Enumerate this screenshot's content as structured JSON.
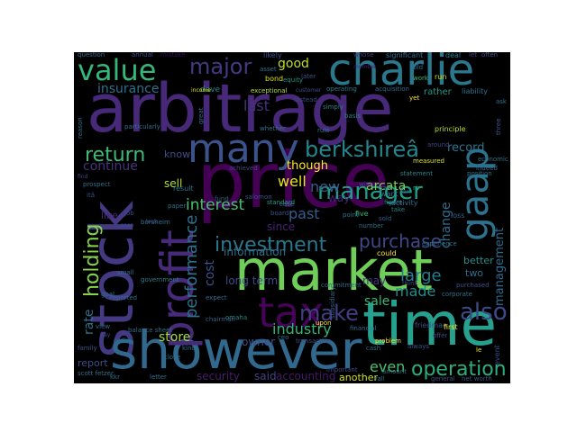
{
  "words": [
    {
      "t": "arbitrage",
      "c": "#482878"
    },
    {
      "t": "price",
      "c": "#440154"
    },
    {
      "t": "stock",
      "c": "#443a83"
    },
    {
      "t": "market",
      "c": "#6ece58"
    },
    {
      "t": "time",
      "c": "#25a18e"
    },
    {
      "t": "showever",
      "c": "#31688e"
    },
    {
      "t": "charlie",
      "c": "#2a788e"
    },
    {
      "t": "profit",
      "c": "#472a7a"
    },
    {
      "t": "value",
      "c": "#35b779"
    },
    {
      "t": "many",
      "c": "#3b528b"
    },
    {
      "t": "gaap",
      "c": "#2c728e"
    },
    {
      "t": "tax",
      "c": "#450457"
    },
    {
      "t": "also",
      "c": "#3e4989"
    },
    {
      "t": "investment",
      "c": "#2a788e"
    },
    {
      "t": "berkshireâ",
      "c": "#24868e"
    },
    {
      "t": "manager",
      "c": "#1f9e89"
    },
    {
      "t": "major",
      "c": "#443983"
    },
    {
      "t": "return",
      "c": "#3bbb75"
    },
    {
      "t": "operation",
      "c": "#2ab07f"
    },
    {
      "t": "holding",
      "c": "#84d44b"
    },
    {
      "t": "performance",
      "c": "#2d708e"
    },
    {
      "t": "purchase",
      "c": "#3f4889"
    },
    {
      "t": "make",
      "c": "#433e85"
    },
    {
      "t": "good",
      "c": "#bddf26"
    },
    {
      "t": "sale",
      "c": "#37b878"
    },
    {
      "t": "last",
      "c": "#46327e"
    },
    {
      "t": "well",
      "c": "#e5e419"
    },
    {
      "t": "new",
      "c": "#365c8d"
    },
    {
      "t": "interest",
      "c": "#46c06f"
    },
    {
      "t": "industry",
      "c": "#31b57b"
    },
    {
      "t": "store",
      "c": "#a2da37"
    },
    {
      "t": "insurance",
      "c": "#2d708e"
    },
    {
      "t": "continue",
      "c": "#46337e"
    },
    {
      "t": "cost",
      "c": "#3b528b"
    },
    {
      "t": "even",
      "c": "#4ac16d"
    },
    {
      "t": "large",
      "c": "#287d8e"
    },
    {
      "t": "though",
      "c": "#fde725"
    },
    {
      "t": "made",
      "c": "#228c8d"
    },
    {
      "t": "management",
      "c": "#306a8e"
    },
    {
      "t": "change",
      "c": "#2f6c8e"
    },
    {
      "t": "past",
      "c": "#365d8d"
    },
    {
      "t": "rate",
      "c": "#2c738e"
    },
    {
      "t": "arcata",
      "c": "#7ad151"
    },
    {
      "t": "record",
      "c": "#2a778e"
    },
    {
      "t": "long term",
      "c": "#3e4a89"
    },
    {
      "t": "information",
      "c": "#2c728e"
    },
    {
      "t": "sell",
      "c": "#b2dd2d"
    },
    {
      "t": "since",
      "c": "#482173"
    },
    {
      "t": "way",
      "c": "#482475"
    },
    {
      "t": "know",
      "c": "#3d4e8a"
    },
    {
      "t": "like",
      "c": "#482677"
    },
    {
      "t": "security",
      "c": "#481c6e"
    },
    {
      "t": "owner",
      "c": "#3c4f8a"
    },
    {
      "t": "said",
      "c": "#414487"
    },
    {
      "t": "accounting",
      "c": "#48186a"
    },
    {
      "t": "another",
      "c": "#d0e11c"
    },
    {
      "t": "report",
      "c": "#3e4c8a"
    },
    {
      "t": "may",
      "c": "#463480"
    },
    {
      "t": "two",
      "c": "#2e6e8e"
    },
    {
      "t": "better",
      "c": "#20928c"
    },
    {
      "t": "question",
      "c": "#2e6f8e"
    },
    {
      "t": "annual",
      "c": "#3a548c"
    },
    {
      "t": "mistake",
      "c": "#2d1159"
    },
    {
      "t": "likely",
      "c": "#3b518b"
    },
    {
      "t": "whose",
      "c": "#453581"
    },
    {
      "t": "significant",
      "c": "#2d708e"
    },
    {
      "t": "deal",
      "c": "#26818e"
    },
    {
      "t": "let",
      "c": "#433d84"
    },
    {
      "t": "often",
      "c": "#3a548c"
    },
    {
      "t": "bond",
      "c": "#dde318"
    },
    {
      "t": "equity",
      "c": "#1f988b"
    },
    {
      "t": "later",
      "c": "#3b528b"
    },
    {
      "t": "member",
      "c": "#481d6f"
    },
    {
      "t": "hold",
      "c": "#2c718e"
    },
    {
      "t": "run",
      "c": "#c8e020"
    },
    {
      "t": "work",
      "c": "#38b977"
    },
    {
      "t": "dave",
      "c": "#23898e"
    },
    {
      "t": "exceptional",
      "c": "#b5de2b"
    },
    {
      "t": "customer",
      "c": "#3b528b"
    },
    {
      "t": "operating",
      "c": "#287c8e"
    },
    {
      "t": "acquisition",
      "c": "#2f6b8e"
    },
    {
      "t": "rather",
      "c": "#1f9a8a"
    },
    {
      "t": "liability",
      "c": "#2c738e"
    },
    {
      "t": "income",
      "c": "#e2e418"
    },
    {
      "t": "yet",
      "c": "#fde725"
    },
    {
      "t": "instead",
      "c": "#3e4a89"
    },
    {
      "t": "basis",
      "c": "#26818e"
    },
    {
      "t": "simply",
      "c": "#26828e"
    },
    {
      "t": "rule",
      "c": "#2a778e"
    },
    {
      "t": "principle",
      "c": "#b8de29"
    },
    {
      "t": "three",
      "c": "#3a548c"
    },
    {
      "t": "around",
      "c": "#3f4889"
    },
    {
      "t": "economic",
      "c": "#2c718e"
    },
    {
      "t": "indeed",
      "c": "#2d708e"
    },
    {
      "t": "position",
      "c": "#2b748e"
    },
    {
      "t": "measured",
      "c": "#dce319"
    },
    {
      "t": "whether",
      "c": "#2d708e"
    },
    {
      "t": "achieved",
      "c": "#3e4a89"
    },
    {
      "t": "statement",
      "c": "#24878e"
    },
    {
      "t": "activity",
      "c": "#2e6f8e"
    },
    {
      "t": "wish",
      "c": "#3f4788"
    },
    {
      "t": "gain",
      "c": "#2b748e"
    },
    {
      "t": "rjr",
      "c": "#22a785"
    },
    {
      "t": "want",
      "c": "#2d708e"
    },
    {
      "t": "far",
      "c": "#3d4e8a"
    },
    {
      "t": "result",
      "c": "#2c738e"
    },
    {
      "t": "loss",
      "c": "#34618d"
    },
    {
      "t": "fund",
      "c": "#365d8d"
    },
    {
      "t": "case",
      "c": "#2a788e"
    },
    {
      "t": "standard",
      "c": "#1e9c89"
    },
    {
      "t": "figure",
      "c": "#2b748e"
    },
    {
      "t": "board",
      "c": "#39568c"
    },
    {
      "t": "point",
      "c": "#2c718e"
    },
    {
      "t": "five",
      "c": "#35b779"
    },
    {
      "t": "take",
      "c": "#26828e"
    },
    {
      "t": "job",
      "c": "#3e4c8a"
    },
    {
      "t": "borsheim",
      "c": "#2c728e"
    },
    {
      "t": "salomon",
      "c": "#3b528b"
    },
    {
      "t": "sold",
      "c": "#34618d"
    },
    {
      "t": "number",
      "c": "#2e6e8e"
    },
    {
      "t": "experience",
      "c": "#2c718e"
    },
    {
      "t": "seen",
      "c": "#3b528b"
    },
    {
      "t": "government",
      "c": "#26828e"
    },
    {
      "t": "small",
      "c": "#2c718e"
    },
    {
      "t": "commitment",
      "c": "#2d708e"
    },
    {
      "t": "could",
      "c": "#fde725"
    },
    {
      "t": "subsidiary",
      "c": "#31688e"
    },
    {
      "t": "expect",
      "c": "#2e6d8e"
    },
    {
      "t": "think",
      "c": "#3f4788"
    },
    {
      "t": "purchased",
      "c": "#3b528b"
    },
    {
      "t": "reported",
      "c": "#2e6e8e"
    },
    {
      "t": "corporate",
      "c": "#2c738e"
    },
    {
      "t": "chairman",
      "c": "#34618d"
    },
    {
      "t": "omaha",
      "c": "#24878e"
    },
    {
      "t": "upon",
      "c": "#fde725"
    },
    {
      "t": "financial",
      "c": "#2e6e8e"
    },
    {
      "t": "friedman",
      "c": "#3b528b"
    },
    {
      "t": "first",
      "c": "#fde725"
    },
    {
      "t": "balance sheet",
      "c": "#2e6f8e"
    },
    {
      "t": "ceo",
      "c": "#2c718e"
    },
    {
      "t": "problem",
      "c": "#fde725"
    },
    {
      "t": "cash",
      "c": "#2e6d8e"
    },
    {
      "t": "always",
      "c": "#3b528b"
    },
    {
      "t": "kind",
      "c": "#2c728e"
    },
    {
      "t": "transaction",
      "c": "#3e4c8a"
    },
    {
      "t": "close",
      "c": "#2c738e"
    },
    {
      "t": "event",
      "c": "#3e4c8a"
    },
    {
      "t": "le",
      "c": "#fde725"
    },
    {
      "t": "kkr",
      "c": "#2c718e"
    },
    {
      "t": "letter",
      "c": "#2d708e"
    },
    {
      "t": "important",
      "c": "#3e4a89"
    },
    {
      "t": "fall",
      "c": "#2c718e"
    },
    {
      "t": "amount",
      "c": "#2c738e"
    },
    {
      "t": "general",
      "c": "#3e4c8a"
    },
    {
      "t": "net worth",
      "c": "#3b528b"
    },
    {
      "t": "scott fetzer",
      "c": "#2c718e"
    },
    {
      "t": "family",
      "c": "#3b528b"
    },
    {
      "t": "earlier",
      "c": "#2c718e"
    },
    {
      "t": "say",
      "c": "#3e4c8a"
    },
    {
      "t": "view",
      "c": "#2d708e"
    },
    {
      "t": "goal",
      "c": "#2c718e"
    },
    {
      "t": "itâ",
      "c": "#3b528b"
    },
    {
      "t": "prospect",
      "c": "#2c728e"
    },
    {
      "t": "find",
      "c": "#3e4a89"
    },
    {
      "t": "reason",
      "c": "#2d708e"
    },
    {
      "t": "particularly",
      "c": "#2c718e"
    },
    {
      "t": "look",
      "c": "#3e4c8a"
    },
    {
      "t": "paper",
      "c": "#2c718e"
    },
    {
      "t": "great",
      "c": "#2e6e8e"
    },
    {
      "t": "asset",
      "c": "#2c718e"
    },
    {
      "t": "offer",
      "c": "#3e4a89"
    },
    {
      "t": "ask",
      "c": "#2c738e"
    },
    {
      "t": "wes",
      "c": "#2c718e"
    }
  ]
}
